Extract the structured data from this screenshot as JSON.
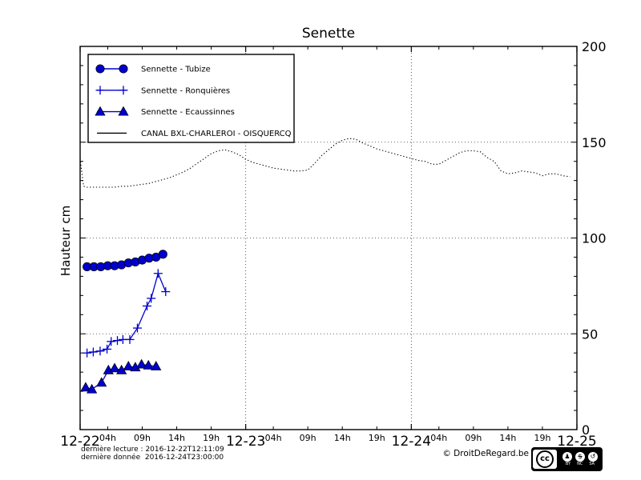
{
  "title": "Senette",
  "colors": {
    "series_blue": "#0000cc",
    "axis_black": "#000000",
    "grid_gray": "#333333",
    "background": "#ffffff"
  },
  "y_axis": {
    "label": "Hauteur cm",
    "major_ticks": [
      0,
      50,
      100,
      150,
      200
    ],
    "minor_step": 10,
    "gridlines": [
      50,
      100,
      150
    ],
    "range": [
      0,
      200
    ]
  },
  "x_axis": {
    "range_hours": [
      0,
      72
    ],
    "day_ticks": [
      {
        "label": "12-22",
        "hour": 0
      },
      {
        "label": "12-23",
        "hour": 24
      },
      {
        "label": "12-24",
        "hour": 48
      },
      {
        "label": "12-25",
        "hour": 72
      }
    ],
    "hour_tick_offsets": [
      {
        "label": "04h",
        "offset": 4
      },
      {
        "label": "09h",
        "offset": 9
      },
      {
        "label": "14h",
        "offset": 14
      },
      {
        "label": "19h",
        "offset": 19
      }
    ],
    "gridline_hours": [
      24,
      48
    ]
  },
  "legend": {
    "items": [
      {
        "label": "Sennette - Tubize",
        "marker": "circle",
        "color": "blue"
      },
      {
        "label": "Sennette - Ronquières",
        "marker": "plus",
        "color": "blue"
      },
      {
        "label": "Sennette - Ecaussinnes",
        "marker": "triangle",
        "color": "blue"
      },
      {
        "label": "CANAL BXL-CHARLEROI  - OISQUERCQ",
        "marker": "line",
        "color": "black"
      }
    ]
  },
  "footer": {
    "last_read": "dernière lecture : 2016-12-22T12:11:09",
    "last_data": "dernière donnée  2016-12-24T23:00:00",
    "copyright": "© DroitDeRegard.be",
    "license": {
      "cc": "cc",
      "labels": [
        "BY",
        "NC",
        "SA"
      ]
    }
  },
  "chart_data": {
    "type": "line",
    "title": "Senette",
    "ylabel": "Hauteur cm",
    "ylim": [
      0,
      200
    ],
    "xlim_hours": [
      0,
      72
    ],
    "x_unit": "hours since 2016-12-22 00:00",
    "grid": "dotted at y=50,100,150 and at day boundaries 12-23, 12-24",
    "legend_position": "upper-left",
    "series": [
      {
        "name": "Sennette - Tubize",
        "marker": "circle",
        "style": "solid-blue",
        "x": [
          1,
          2,
          3,
          4,
          5,
          6,
          7,
          8,
          9,
          10,
          11,
          12
        ],
        "values": [
          85,
          85,
          85,
          85.5,
          85.5,
          86,
          87,
          87.5,
          88.5,
          89.5,
          90,
          91.5
        ]
      },
      {
        "name": "Sennette - Ronquières",
        "marker": "plus",
        "style": "solid-blue",
        "x": [
          1,
          1.9,
          2.9,
          3.9,
          4.5,
          5.4,
          6.2,
          7.2,
          8.3,
          9.7,
          10.3,
          11.3,
          12.4
        ],
        "values": [
          40,
          40.5,
          41,
          42,
          46,
          46.5,
          47,
          47,
          53,
          64.5,
          68.5,
          81.5,
          72
        ]
      },
      {
        "name": "Sennette - Ecaussinnes",
        "marker": "triangle",
        "style": "solid-blue",
        "x": [
          0.8,
          1.7,
          3.1,
          4.1,
          5,
          6,
          7,
          8,
          8.9,
          9.9,
          11
        ],
        "values": [
          22,
          21,
          24.5,
          31,
          32,
          31,
          33,
          32.5,
          34,
          33.5,
          33
        ]
      },
      {
        "name": "CANAL BXL-CHARLEROI  - OISQUERCQ",
        "marker": "none",
        "style": "dotted-black",
        "x": [
          0,
          0.5,
          1,
          2,
          3,
          4,
          5,
          6,
          7,
          8,
          9,
          10,
          11,
          12,
          13,
          14,
          15,
          16,
          17,
          18,
          19,
          20,
          21,
          22,
          23,
          24,
          25,
          26,
          27,
          28,
          29,
          30,
          31,
          32,
          33,
          34,
          35,
          36,
          37,
          38,
          39,
          40,
          41,
          42,
          43,
          44,
          45,
          46,
          47,
          48,
          49,
          50,
          51,
          52,
          53,
          54,
          55,
          56,
          57,
          58,
          59,
          60,
          61,
          62,
          63,
          64,
          65,
          66,
          67,
          68,
          69,
          70,
          71
        ],
        "values": [
          141.5,
          127,
          126.5,
          126.5,
          126.5,
          126.5,
          126.5,
          127,
          127,
          127.5,
          128,
          128.5,
          129.5,
          130.5,
          131.5,
          133,
          134.5,
          136.5,
          139,
          141.5,
          144,
          145.5,
          146,
          145,
          143.5,
          141,
          139.5,
          138.5,
          137.5,
          136.5,
          136,
          135.5,
          135,
          135,
          135.5,
          139,
          143,
          146,
          149,
          151,
          152,
          151.5,
          149.5,
          148,
          146.5,
          145.5,
          144.5,
          143.5,
          142.5,
          141.5,
          140.5,
          140,
          138.5,
          138.5,
          140.5,
          142.5,
          144.5,
          145.5,
          145.5,
          145,
          142,
          140,
          135,
          133.5,
          134,
          135,
          134.5,
          134,
          132.5,
          133.5,
          133.5,
          132.5,
          132
        ]
      }
    ]
  }
}
